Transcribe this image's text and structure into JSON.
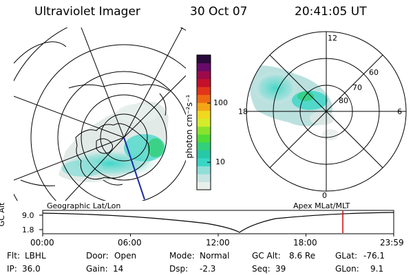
{
  "header": {
    "instrument": "Ultraviolet Imager",
    "date": "30 Oct 07",
    "time": "20:41:05 UT"
  },
  "colorbar": {
    "unit_label": "photon cm⁻²s⁻¹",
    "scale": "log",
    "ticks": [
      "100",
      "10"
    ],
    "colors": [
      "#e8f0ec",
      "#c7e4e2",
      "#8fded8",
      "#38d6c6",
      "#27c8a8",
      "#32d07a",
      "#4fdc38",
      "#8ae22c",
      "#d4ec2a",
      "#f0d81e",
      "#f4a516",
      "#ee6a12",
      "#e2351a",
      "#c4102a",
      "#9c0a4a",
      "#680a6a",
      "#2a0a3a"
    ]
  },
  "left_map": {
    "caption": "Geographic Lat/Lon"
  },
  "right_map": {
    "caption": "Apex MLat/MLT",
    "lat_labels": [
      "80",
      "70",
      "60"
    ],
    "mlt_labels": {
      "top": "12",
      "left": "18",
      "right": "6",
      "bottom": "0"
    }
  },
  "altitude_plot": {
    "axis_label": "GC Alt",
    "y_ticks": [
      "9.0",
      "1.8"
    ],
    "x_ticks": [
      "00:00",
      "06:00",
      "12:00",
      "18:00",
      "23:59"
    ],
    "current_time_fraction": 0.855,
    "marker_color": "#cc0000"
  },
  "status": {
    "row1": [
      {
        "label": "Flt:",
        "value": "LBHL"
      },
      {
        "label": "Door:",
        "value": "Open"
      },
      {
        "label": "Mode:",
        "value": "Normal"
      },
      {
        "label": "GC Alt:",
        "value": "8.6 Re"
      },
      {
        "label": "GLat:",
        "value": "-76.1"
      }
    ],
    "row2": [
      {
        "label": "IP:",
        "value": "36.0"
      },
      {
        "label": "Gain:",
        "value": "14"
      },
      {
        "label": "Dsp:",
        "value": "-2.3"
      },
      {
        "label": "Seq:",
        "value": "39"
      },
      {
        "label": "GLon:",
        "value": "9.1"
      }
    ]
  }
}
